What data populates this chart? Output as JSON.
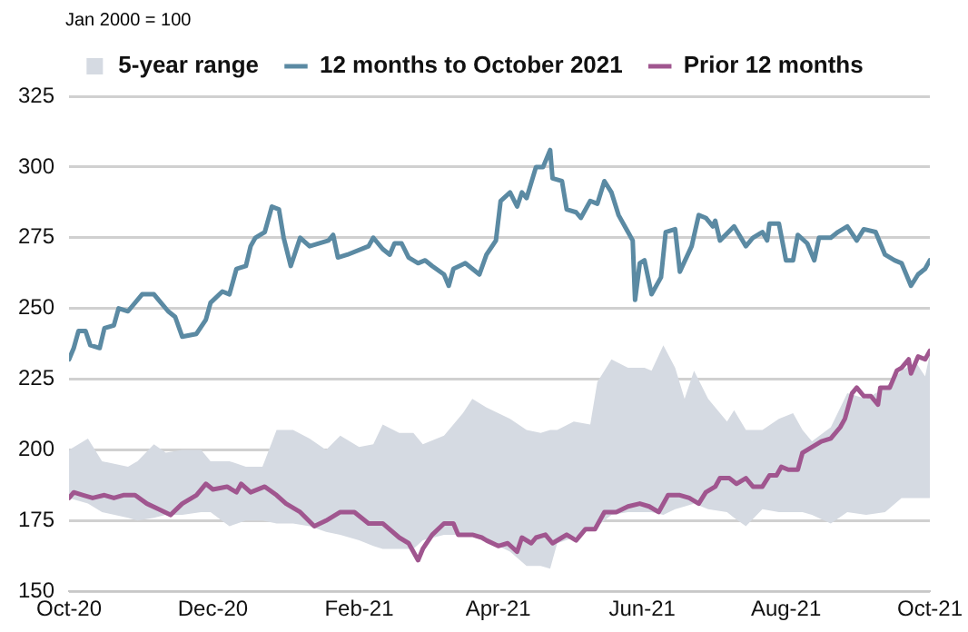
{
  "chart_data": {
    "type": "line",
    "ylabel": "Jan 2000 = 100",
    "xlim": [
      "2020-10-01",
      "2021-10-01"
    ],
    "xticks": [
      {
        "value": "2020-10-01",
        "label": "Oct-20"
      },
      {
        "value": "2020-12-01",
        "label": "Dec-20"
      },
      {
        "value": "2021-02-01",
        "label": "Feb-21"
      },
      {
        "value": "2021-04-01",
        "label": "Apr-21"
      },
      {
        "value": "2021-06-01",
        "label": "Jun-21"
      },
      {
        "value": "2021-08-01",
        "label": "Aug-21"
      },
      {
        "value": "2021-10-01",
        "label": "Oct-21"
      }
    ],
    "ylim": [
      150,
      325
    ],
    "yticks": [
      150,
      175,
      200,
      225,
      250,
      275,
      300,
      325
    ],
    "grid": "y",
    "legend": "top",
    "marker": "none",
    "line_style": "solid",
    "series": [
      {
        "name": "5-year range",
        "type": "area",
        "color": "#d5dae2",
        "x": [
          "2020-10-01",
          "2020-10-09",
          "2020-10-15",
          "2020-10-26",
          "2020-10-30",
          "2020-11-06",
          "2020-11-11",
          "2020-11-18",
          "2020-11-26",
          "2020-11-30",
          "2020-12-08",
          "2020-12-15",
          "2020-12-22",
          "2020-12-28",
          "2021-01-04",
          "2021-01-11",
          "2021-01-18",
          "2021-01-24",
          "2021-02-01",
          "2021-02-07",
          "2021-02-11",
          "2021-02-18",
          "2021-02-24",
          "2021-02-28",
          "2021-03-09",
          "2021-03-17",
          "2021-03-21",
          "2021-03-27",
          "2021-04-06",
          "2021-04-13",
          "2021-04-19",
          "2021-04-23",
          "2021-04-26",
          "2021-05-03",
          "2021-05-10",
          "2021-05-13",
          "2021-05-19",
          "2021-05-26",
          "2021-06-02",
          "2021-06-05",
          "2021-06-10",
          "2021-06-15",
          "2021-06-19",
          "2021-06-23",
          "2021-06-29",
          "2021-07-07",
          "2021-07-10",
          "2021-07-15",
          "2021-07-22",
          "2021-07-29",
          "2021-08-04",
          "2021-08-08",
          "2021-08-12",
          "2021-08-20",
          "2021-08-27",
          "2021-09-04",
          "2021-09-12",
          "2021-09-19",
          "2021-09-25",
          "2021-09-29",
          "2021-10-01"
        ],
        "values": [
          null,
          null,
          null,
          null,
          null,
          null,
          null,
          null,
          null,
          null,
          null,
          null,
          null,
          null,
          null,
          null,
          null,
          null,
          null,
          null,
          null,
          null,
          null,
          null,
          null,
          null,
          null,
          null,
          null,
          null,
          null,
          null,
          null,
          null,
          null,
          null,
          null,
          null,
          null,
          null,
          null,
          null,
          null,
          null,
          null,
          null,
          null,
          null,
          null,
          null,
          null,
          null,
          null,
          null,
          null,
          null,
          null,
          null,
          null,
          null,
          null
        ],
        "upper": [
          200,
          204,
          196,
          194,
          196,
          202,
          199,
          200,
          200,
          196,
          196,
          194,
          194,
          207,
          207,
          204,
          200,
          205,
          201,
          202,
          209,
          206,
          206,
          202,
          205,
          213,
          218,
          215,
          211,
          207,
          206,
          207,
          207,
          210,
          209,
          224,
          232,
          229,
          229,
          228,
          237,
          229,
          218,
          228,
          218,
          210,
          214,
          207,
          207,
          211,
          213,
          207,
          203,
          208,
          220,
          218,
          222,
          228,
          231,
          226,
          234
        ],
        "lower": [
          183,
          181,
          178,
          176,
          175,
          176,
          177,
          177,
          178,
          178,
          173,
          175,
          175,
          174,
          174,
          173,
          171,
          170,
          168,
          166,
          165,
          165,
          165,
          168,
          170,
          170,
          170,
          168,
          164,
          159,
          159,
          158,
          167,
          169,
          172,
          173,
          177,
          178,
          178,
          178,
          177,
          179,
          180,
          181,
          179,
          178,
          176,
          173,
          179,
          178,
          178,
          178,
          177,
          174,
          178,
          177,
          178,
          183,
          183,
          183,
          183
        ]
      },
      {
        "name": "12 months to October 2021",
        "type": "line",
        "color": "#5b8aa3",
        "x": [
          "2020-10-01",
          "2020-10-03",
          "2020-10-05",
          "2020-10-08",
          "2020-10-10",
          "2020-10-14",
          "2020-10-16",
          "2020-10-20",
          "2020-10-22",
          "2020-10-26",
          "2020-11-01",
          "2020-11-06",
          "2020-11-08",
          "2020-11-12",
          "2020-11-15",
          "2020-11-18",
          "2020-11-24",
          "2020-11-28",
          "2020-11-30",
          "2020-12-05",
          "2020-12-08",
          "2020-12-11",
          "2020-12-15",
          "2020-12-17",
          "2020-12-19",
          "2020-12-23",
          "2020-12-25",
          "2020-12-26",
          "2020-12-29",
          "2020-12-31",
          "2021-01-03",
          "2021-01-07",
          "2021-01-11",
          "2021-01-19",
          "2021-01-21",
          "2021-01-23",
          "2021-01-27",
          "2021-02-05",
          "2021-02-07",
          "2021-02-11",
          "2021-02-14",
          "2021-02-16",
          "2021-02-19",
          "2021-02-22",
          "2021-02-26",
          "2021-03-01",
          "2021-03-04",
          "2021-03-09",
          "2021-03-11",
          "2021-03-13",
          "2021-03-18",
          "2021-03-21",
          "2021-03-24",
          "2021-03-27",
          "2021-03-31",
          "2021-04-02",
          "2021-04-06",
          "2021-04-09",
          "2021-04-11",
          "2021-04-13",
          "2021-04-17",
          "2021-04-20",
          "2021-04-23",
          "2021-04-24",
          "2021-04-28",
          "2021-04-30",
          "2021-05-04",
          "2021-05-06",
          "2021-05-10",
          "2021-05-13",
          "2021-05-16",
          "2021-05-19",
          "2021-05-22",
          "2021-05-26",
          "2021-05-28",
          "2021-05-29",
          "2021-05-31",
          "2021-06-02",
          "2021-06-05",
          "2021-06-09",
          "2021-06-11",
          "2021-06-15",
          "2021-06-17",
          "2021-06-22",
          "2021-06-25",
          "2021-06-28",
          "2021-07-01",
          "2021-07-02",
          "2021-07-04",
          "2021-07-10",
          "2021-07-15",
          "2021-07-18",
          "2021-07-22",
          "2021-07-24",
          "2021-07-25",
          "2021-07-29",
          "2021-08-01",
          "2021-08-04",
          "2021-08-06",
          "2021-08-10",
          "2021-08-13",
          "2021-08-15",
          "2021-08-20",
          "2021-08-23",
          "2021-08-27",
          "2021-08-31",
          "2021-09-03",
          "2021-09-08",
          "2021-09-12",
          "2021-09-16",
          "2021-09-19",
          "2021-09-23",
          "2021-09-26",
          "2021-09-29",
          "2021-10-01"
        ],
        "values": [
          232,
          236,
          242,
          242,
          237,
          236,
          243,
          244,
          250,
          249,
          255,
          255,
          253,
          249,
          247,
          240,
          241,
          246,
          252,
          256,
          255,
          264,
          265,
          272,
          275,
          277,
          283,
          286,
          285,
          275,
          265,
          275,
          272,
          274,
          276,
          268,
          269,
          272,
          275,
          271,
          269,
          273,
          273,
          268,
          266,
          267,
          265,
          262,
          258,
          264,
          266,
          264,
          262,
          269,
          274,
          288,
          291,
          286,
          291,
          289,
          300,
          300,
          306,
          296,
          295,
          285,
          284,
          282,
          288,
          287,
          295,
          291,
          283,
          277,
          274,
          253,
          266,
          267,
          255,
          261,
          277,
          278,
          263,
          272,
          283,
          282,
          279,
          281,
          274,
          279,
          272,
          275,
          277,
          274,
          280,
          280,
          267,
          267,
          276,
          273,
          267,
          275,
          275,
          277,
          279,
          274,
          278,
          277,
          269,
          267,
          266,
          258,
          262,
          264,
          267
        ]
      },
      {
        "name": "Prior 12 months",
        "type": "line",
        "color": "#a0568f",
        "x": [
          "2020-10-01",
          "2020-10-03",
          "2020-10-07",
          "2020-10-11",
          "2020-10-16",
          "2020-10-20",
          "2020-10-24",
          "2020-10-29",
          "2020-11-03",
          "2020-11-08",
          "2020-11-13",
          "2020-11-18",
          "2020-11-24",
          "2020-11-28",
          "2020-12-01",
          "2020-12-07",
          "2020-12-11",
          "2020-12-13",
          "2020-12-17",
          "2020-12-23",
          "2020-12-28",
          "2021-01-01",
          "2021-01-07",
          "2021-01-13",
          "2021-01-18",
          "2021-01-24",
          "2021-01-30",
          "2021-02-05",
          "2021-02-11",
          "2021-02-18",
          "2021-02-22",
          "2021-02-26",
          "2021-02-28",
          "2021-03-04",
          "2021-03-09",
          "2021-03-13",
          "2021-03-15",
          "2021-03-21",
          "2021-03-25",
          "2021-03-27",
          "2021-04-01",
          "2021-04-05",
          "2021-04-09",
          "2021-04-11",
          "2021-04-15",
          "2021-04-17",
          "2021-04-21",
          "2021-04-24",
          "2021-04-28",
          "2021-04-30",
          "2021-05-04",
          "2021-05-08",
          "2021-05-12",
          "2021-05-16",
          "2021-05-21",
          "2021-05-26",
          "2021-05-31",
          "2021-06-04",
          "2021-06-08",
          "2021-06-12",
          "2021-06-17",
          "2021-06-21",
          "2021-06-25",
          "2021-06-28",
          "2021-07-02",
          "2021-07-04",
          "2021-07-08",
          "2021-07-11",
          "2021-07-15",
          "2021-07-18",
          "2021-07-22",
          "2021-07-25",
          "2021-07-28",
          "2021-07-30",
          "2021-08-02",
          "2021-08-06",
          "2021-08-08",
          "2021-08-12",
          "2021-08-16",
          "2021-08-20",
          "2021-08-24",
          "2021-08-26",
          "2021-08-29",
          "2021-08-31",
          "2021-09-03",
          "2021-09-06",
          "2021-09-09",
          "2021-09-10",
          "2021-09-14",
          "2021-09-17",
          "2021-09-19",
          "2021-09-22",
          "2021-09-23",
          "2021-09-26",
          "2021-09-29",
          "2021-10-01"
        ],
        "values": [
          183,
          185,
          184,
          183,
          184,
          183,
          184,
          184,
          181,
          179,
          177,
          181,
          184,
          188,
          186,
          187,
          185,
          188,
          185,
          187,
          184,
          181,
          178,
          173,
          175,
          178,
          178,
          174,
          174,
          169,
          167,
          161,
          165,
          170,
          174,
          174,
          170,
          170,
          169,
          168,
          166,
          167,
          164,
          169,
          167,
          169,
          170,
          167,
          169,
          170,
          168,
          172,
          172,
          178,
          178,
          180,
          181,
          180,
          178,
          184,
          184,
          183,
          181,
          185,
          187,
          190,
          190,
          188,
          190,
          187,
          187,
          191,
          191,
          194,
          193,
          193,
          199,
          201,
          203,
          204,
          208,
          211,
          220,
          222,
          219,
          219,
          216,
          222,
          222,
          228,
          229,
          232,
          227,
          233,
          232,
          235
        ]
      }
    ]
  }
}
